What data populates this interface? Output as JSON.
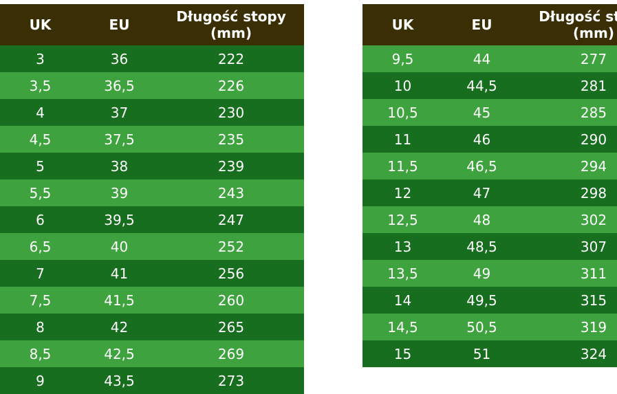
{
  "chart_data": [
    {
      "type": "table",
      "columns": [
        "UK",
        "EU",
        "Długość stopy (mm)"
      ],
      "first_row_shade": "dark",
      "rows": [
        [
          "3",
          "36",
          "222"
        ],
        [
          "3,5",
          "36,5",
          "226"
        ],
        [
          "4",
          "37",
          "230"
        ],
        [
          "4,5",
          "37,5",
          "235"
        ],
        [
          "5",
          "38",
          "239"
        ],
        [
          "5,5",
          "39",
          "243"
        ],
        [
          "6",
          "39,5",
          "247"
        ],
        [
          "6,5",
          "40",
          "252"
        ],
        [
          "7",
          "41",
          "256"
        ],
        [
          "7,5",
          "41,5",
          "260"
        ],
        [
          "8",
          "42",
          "265"
        ],
        [
          "8,5",
          "42,5",
          "269"
        ],
        [
          "9",
          "43,5",
          "273"
        ]
      ]
    },
    {
      "type": "table",
      "columns": [
        "UK",
        "EU",
        "Długość stopy (mm)"
      ],
      "first_row_shade": "light",
      "rows": [
        [
          "9,5",
          "44",
          "277"
        ],
        [
          "10",
          "44,5",
          "281"
        ],
        [
          "10,5",
          "45",
          "285"
        ],
        [
          "11",
          "46",
          "290"
        ],
        [
          "11,5",
          "46,5",
          "294"
        ],
        [
          "12",
          "47",
          "298"
        ],
        [
          "12,5",
          "48",
          "302"
        ],
        [
          "13",
          "48,5",
          "307"
        ],
        [
          "13,5",
          "49",
          "311"
        ],
        [
          "14",
          "49,5",
          "315"
        ],
        [
          "14,5",
          "50,5",
          "319"
        ],
        [
          "15",
          "51",
          "324"
        ]
      ]
    }
  ],
  "colors": {
    "header_bg": "#3a2e04",
    "row_dark": "#176e1e",
    "row_light": "#3ea33e",
    "text": "#ffffff",
    "background": "#ffffff"
  }
}
